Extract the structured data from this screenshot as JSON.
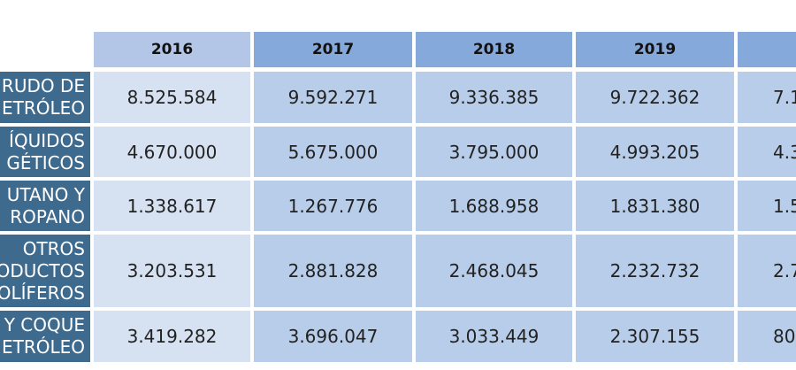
{
  "columns": [
    "2016",
    "2017",
    "2018",
    "2019",
    ""
  ],
  "rows": [
    {
      "label": "RUDO DE\nETRÓLEO",
      "values": [
        "8.525.584",
        "9.592.271",
        "9.336.385",
        "9.722.362",
        "7.1"
      ]
    },
    {
      "label": "ÍQUIDOS\nGÉTICOS",
      "values": [
        "4.670.000",
        "5.675.000",
        "3.795.000",
        "4.993.205",
        "4.3"
      ]
    },
    {
      "label": "UTANO Y\nROPANO",
      "values": [
        "1.338.617",
        "1.267.776",
        "1.688.958",
        "1.831.380",
        "1.5"
      ]
    },
    {
      "label": "OTROS\nODUCTOS\nOLÍFEROS",
      "values": [
        "3.203.531",
        "2.881.828",
        "2.468.045",
        "2.232.732",
        "2.7"
      ]
    },
    {
      "label": "Y COQUE\nETRÓLEO",
      "values": [
        "3.419.282",
        "3.696.047",
        "3.033.449",
        "2.307.155",
        "80"
      ]
    }
  ],
  "colors": {
    "row_label_bg": "#3e6a8e",
    "first_col_header_bg": "#b4c6e7",
    "header_bg": "#86a9dc",
    "first_col_cell_bg": "#d6e1f2",
    "cell_bg": "#b8cdea"
  }
}
